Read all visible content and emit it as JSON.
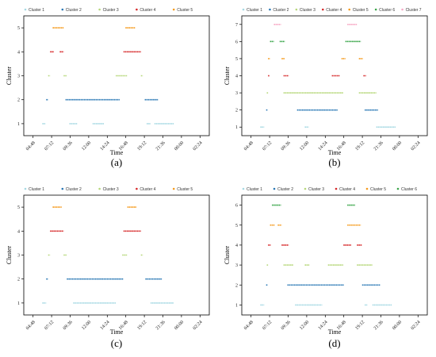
{
  "figure": {
    "colors": [
      "#a6d9e3",
      "#2a78b5",
      "#b6d77a",
      "#d62728",
      "#f59a1b",
      "#3aa64a",
      "#f7a8c4"
    ]
  },
  "chart_data": [
    {
      "type": "scatter",
      "panel_label": "(a)",
      "xlabel": "Time",
      "ylabel": "Cluster",
      "xticks": [
        "04:48",
        "07:12",
        "09:36",
        "12:00",
        "14:24",
        "16:48",
        "19:12",
        "21:36",
        "00:00",
        "02:24"
      ],
      "xlim": [
        "03:36",
        "03:36+1"
      ],
      "ylim": [
        0.5,
        5.5
      ],
      "yticks": [
        1,
        2,
        3,
        4,
        5
      ],
      "series": [
        {
          "name": "Cluster 1",
          "segments": [
            [
              "06:00",
              "06:24"
            ],
            [
              "09:30",
              "10:30"
            ],
            [
              "12:30",
              "14:00"
            ],
            [
              "19:30",
              "20:00"
            ],
            [
              "20:30",
              "23:00"
            ]
          ],
          "y": 1
        },
        {
          "name": "Cluster 2",
          "segments": [
            [
              "06:30",
              "06:45"
            ],
            [
              "09:00",
              "16:00"
            ],
            [
              "19:15",
              "21:00"
            ]
          ],
          "y": 2
        },
        {
          "name": "Cluster 3",
          "segments": [
            [
              "06:45",
              "07:00"
            ],
            [
              "08:45",
              "09:10"
            ],
            [
              "15:30",
              "17:00"
            ],
            [
              "18:45",
              "19:00"
            ]
          ],
          "y": 3
        },
        {
          "name": "Cluster 4",
          "segments": [
            [
              "07:00",
              "07:30"
            ],
            [
              "08:15",
              "08:45"
            ],
            [
              "16:30",
              "18:45"
            ]
          ],
          "y": 4
        },
        {
          "name": "Cluster 5",
          "segments": [
            [
              "07:20",
              "08:45"
            ],
            [
              "16:45",
              "18:00"
            ]
          ],
          "y": 5
        }
      ]
    },
    {
      "type": "scatter",
      "panel_label": "(b)",
      "xlabel": "Time",
      "ylabel": "Cluster",
      "xticks": [
        "04:48",
        "07:12",
        "09:36",
        "12:00",
        "14:24",
        "16:48",
        "19:12",
        "21:36",
        "00:00",
        "02:24"
      ],
      "xlim": [
        "03:36",
        "03:36+1"
      ],
      "ylim": [
        0.5,
        7.5
      ],
      "yticks": [
        1,
        2,
        3,
        4,
        5,
        6,
        7
      ],
      "series": [
        {
          "name": "Cluster 1",
          "segments": [
            [
              "06:00",
              "06:30"
            ],
            [
              "11:45",
              "12:15"
            ],
            [
              "21:00",
              "23:30"
            ]
          ],
          "y": 1
        },
        {
          "name": "Cluster 2",
          "segments": [
            [
              "06:45",
              "06:55"
            ],
            [
              "10:45",
              "16:00"
            ],
            [
              "19:30",
              "21:15"
            ]
          ],
          "y": 2
        },
        {
          "name": "Cluster 3",
          "segments": [
            [
              "06:50",
              "07:00"
            ],
            [
              "09:00",
              "16:45"
            ],
            [
              "18:45",
              "21:00"
            ]
          ],
          "y": 3
        },
        {
          "name": "Cluster 4",
          "segments": [
            [
              "07:00",
              "07:10"
            ],
            [
              "09:00",
              "09:40"
            ],
            [
              "15:15",
              "16:15"
            ],
            [
              "19:20",
              "19:40"
            ]
          ],
          "y": 4
        },
        {
          "name": "Cluster 5",
          "segments": [
            [
              "07:00",
              "07:15"
            ],
            [
              "08:45",
              "09:10"
            ],
            [
              "16:30",
              "17:00"
            ],
            [
              "18:45",
              "19:15"
            ]
          ],
          "y": 5
        },
        {
          "name": "Cluster 6",
          "segments": [
            [
              "07:15",
              "07:45"
            ],
            [
              "08:30",
              "09:10"
            ],
            [
              "17:00",
              "19:00"
            ]
          ],
          "y": 6
        },
        {
          "name": "Cluster 7",
          "segments": [
            [
              "07:45",
              "08:40"
            ],
            [
              "17:15",
              "18:30"
            ]
          ],
          "y": 7
        }
      ]
    },
    {
      "type": "scatter",
      "panel_label": "(c)",
      "xlabel": "Time",
      "ylabel": "Cluster",
      "xticks": [
        "04:48",
        "07:12",
        "09:36",
        "12:00",
        "14:24",
        "16:48",
        "19:12",
        "21:36",
        "00:00",
        "02:24"
      ],
      "xlim": [
        "03:36",
        "03:36+1"
      ],
      "ylim": [
        0.5,
        5.5
      ],
      "yticks": [
        1,
        2,
        3,
        4,
        5
      ],
      "series": [
        {
          "name": "Cluster 1",
          "segments": [
            [
              "06:00",
              "06:30"
            ],
            [
              "10:00",
              "15:30"
            ],
            [
              "20:00",
              "23:00"
            ]
          ],
          "y": 1
        },
        {
          "name": "Cluster 2",
          "segments": [
            [
              "06:30",
              "06:45"
            ],
            [
              "09:10",
              "16:30"
            ],
            [
              "19:20",
              "21:30"
            ]
          ],
          "y": 2
        },
        {
          "name": "Cluster 3",
          "segments": [
            [
              "06:45",
              "07:00"
            ],
            [
              "08:45",
              "09:10"
            ],
            [
              "16:20",
              "17:00"
            ],
            [
              "18:45",
              "19:00"
            ]
          ],
          "y": 3
        },
        {
          "name": "Cluster 4",
          "segments": [
            [
              "07:00",
              "08:45"
            ],
            [
              "16:30",
              "18:45"
            ]
          ],
          "y": 4
        },
        {
          "name": "Cluster 5",
          "segments": [
            [
              "07:20",
              "08:30"
            ],
            [
              "17:00",
              "18:10"
            ]
          ],
          "y": 5
        }
      ]
    },
    {
      "type": "scatter",
      "panel_label": "(d)",
      "xlabel": "Time",
      "ylabel": "Cluster",
      "xticks": [
        "04:48",
        "07:12",
        "09:36",
        "12:00",
        "14:24",
        "16:48",
        "19:12",
        "21:36",
        "00:00",
        "02:24"
      ],
      "xlim": [
        "03:36",
        "03:36+1"
      ],
      "ylim": [
        0.5,
        6.5
      ],
      "yticks": [
        1,
        2,
        3,
        4,
        5,
        6
      ],
      "series": [
        {
          "name": "Cluster 1",
          "segments": [
            [
              "06:00",
              "06:30"
            ],
            [
              "10:30",
              "14:00"
            ],
            [
              "19:30",
              "19:50"
            ],
            [
              "20:30",
              "23:00"
            ]
          ],
          "y": 1
        },
        {
          "name": "Cluster 2",
          "segments": [
            [
              "06:45",
              "06:55"
            ],
            [
              "09:30",
              "16:50"
            ],
            [
              "19:10",
              "21:30"
            ]
          ],
          "y": 2
        },
        {
          "name": "Cluster 3",
          "segments": [
            [
              "06:50",
              "07:00"
            ],
            [
              "09:00",
              "10:15"
            ],
            [
              "11:45",
              "12:20"
            ],
            [
              "14:45",
              "16:45"
            ],
            [
              "18:30",
              "20:30"
            ]
          ],
          "y": 3
        },
        {
          "name": "Cluster 4",
          "segments": [
            [
              "07:00",
              "07:20"
            ],
            [
              "08:45",
              "09:40"
            ],
            [
              "16:45",
              "17:45"
            ],
            [
              "18:30",
              "19:10"
            ]
          ],
          "y": 4
        },
        {
          "name": "Cluster 5",
          "segments": [
            [
              "07:15",
              "07:50"
            ],
            [
              "08:15",
              "08:45"
            ],
            [
              "17:15",
              "19:00"
            ]
          ],
          "y": 5
        },
        {
          "name": "Cluster 6",
          "segments": [
            [
              "07:30",
              "08:40"
            ],
            [
              "17:15",
              "18:15"
            ]
          ],
          "y": 6
        }
      ]
    }
  ]
}
